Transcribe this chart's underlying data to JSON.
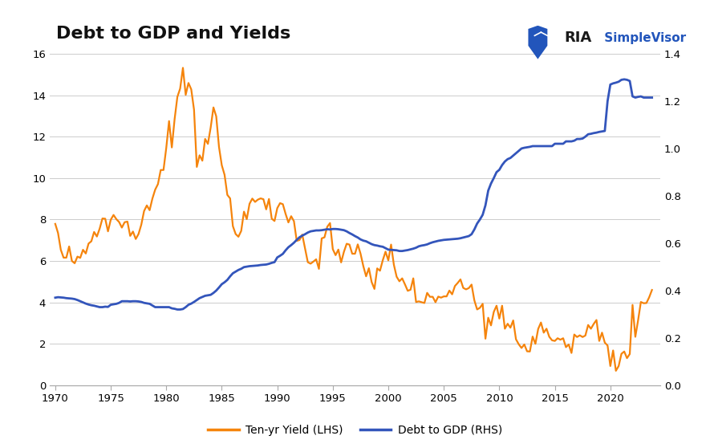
{
  "title": "Debt to GDP and Yields",
  "yield_color": "#F5840C",
  "debt_color": "#3355BB",
  "background_color": "#FFFFFF",
  "lhs_ylim": [
    0,
    16
  ],
  "rhs_ylim": [
    0,
    1.4
  ],
  "lhs_yticks": [
    0,
    2,
    4,
    6,
    8,
    10,
    12,
    14,
    16
  ],
  "rhs_yticks": [
    0,
    0.2,
    0.4,
    0.6,
    0.8,
    1.0,
    1.2,
    1.4
  ],
  "xticks": [
    1970,
    1975,
    1980,
    1985,
    1990,
    1995,
    2000,
    2005,
    2010,
    2015,
    2020
  ],
  "legend_yield": "Ten-yr Yield (LHS)",
  "legend_debt": "Debt to GDP (RHS)",
  "years_yield": [
    1970.0,
    1970.25,
    1970.5,
    1970.75,
    1971.0,
    1971.25,
    1971.5,
    1971.75,
    1972.0,
    1972.25,
    1972.5,
    1972.75,
    1973.0,
    1973.25,
    1973.5,
    1973.75,
    1974.0,
    1974.25,
    1974.5,
    1974.75,
    1975.0,
    1975.25,
    1975.5,
    1975.75,
    1976.0,
    1976.25,
    1976.5,
    1976.75,
    1977.0,
    1977.25,
    1977.5,
    1977.75,
    1978.0,
    1978.25,
    1978.5,
    1978.75,
    1979.0,
    1979.25,
    1979.5,
    1979.75,
    1980.0,
    1980.25,
    1980.5,
    1980.75,
    1981.0,
    1981.25,
    1981.5,
    1981.75,
    1982.0,
    1982.25,
    1982.5,
    1982.75,
    1983.0,
    1983.25,
    1983.5,
    1983.75,
    1984.0,
    1984.25,
    1984.5,
    1984.75,
    1985.0,
    1985.25,
    1985.5,
    1985.75,
    1986.0,
    1986.25,
    1986.5,
    1986.75,
    1987.0,
    1987.25,
    1987.5,
    1987.75,
    1988.0,
    1988.25,
    1988.5,
    1988.75,
    1989.0,
    1989.25,
    1989.5,
    1989.75,
    1990.0,
    1990.25,
    1990.5,
    1990.75,
    1991.0,
    1991.25,
    1991.5,
    1991.75,
    1992.0,
    1992.25,
    1992.5,
    1992.75,
    1993.0,
    1993.25,
    1993.5,
    1993.75,
    1994.0,
    1994.25,
    1994.5,
    1994.75,
    1995.0,
    1995.25,
    1995.5,
    1995.75,
    1996.0,
    1996.25,
    1996.5,
    1996.75,
    1997.0,
    1997.25,
    1997.5,
    1997.75,
    1998.0,
    1998.25,
    1998.5,
    1998.75,
    1999.0,
    1999.25,
    1999.5,
    1999.75,
    2000.0,
    2000.25,
    2000.5,
    2000.75,
    2001.0,
    2001.25,
    2001.5,
    2001.75,
    2002.0,
    2002.25,
    2002.5,
    2002.75,
    2003.0,
    2003.25,
    2003.5,
    2003.75,
    2004.0,
    2004.25,
    2004.5,
    2004.75,
    2005.0,
    2005.25,
    2005.5,
    2005.75,
    2006.0,
    2006.25,
    2006.5,
    2006.75,
    2007.0,
    2007.25,
    2007.5,
    2007.75,
    2008.0,
    2008.25,
    2008.5,
    2008.75,
    2009.0,
    2009.25,
    2009.5,
    2009.75,
    2010.0,
    2010.25,
    2010.5,
    2010.75,
    2011.0,
    2011.25,
    2011.5,
    2011.75,
    2012.0,
    2012.25,
    2012.5,
    2012.75,
    2013.0,
    2013.25,
    2013.5,
    2013.75,
    2014.0,
    2014.25,
    2014.5,
    2014.75,
    2015.0,
    2015.25,
    2015.5,
    2015.75,
    2016.0,
    2016.25,
    2016.5,
    2016.75,
    2017.0,
    2017.25,
    2017.5,
    2017.75,
    2018.0,
    2018.25,
    2018.5,
    2018.75,
    2019.0,
    2019.25,
    2019.5,
    2019.75,
    2020.0,
    2020.25,
    2020.5,
    2020.75,
    2021.0,
    2021.25,
    2021.5,
    2021.75,
    2022.0,
    2022.25,
    2022.5,
    2022.75,
    2023.0,
    2023.25,
    2023.5,
    2023.75
  ],
  "values_yield": [
    7.79,
    7.35,
    6.54,
    6.16,
    6.16,
    6.7,
    6.0,
    5.89,
    6.21,
    6.15,
    6.54,
    6.36,
    6.84,
    6.95,
    7.4,
    7.18,
    7.56,
    8.05,
    8.04,
    7.43,
    7.99,
    8.22,
    8.02,
    7.88,
    7.61,
    7.87,
    7.9,
    7.21,
    7.42,
    7.06,
    7.3,
    7.75,
    8.41,
    8.68,
    8.45,
    9.01,
    9.44,
    9.71,
    10.39,
    10.39,
    11.46,
    12.75,
    11.48,
    12.84,
    13.92,
    14.32,
    15.32,
    14.02,
    14.59,
    14.28,
    13.3,
    10.54,
    11.1,
    10.84,
    11.89,
    11.65,
    12.44,
    13.41,
    12.98,
    11.5,
    10.62,
    10.16,
    9.19,
    9.02,
    7.68,
    7.3,
    7.17,
    7.45,
    8.38,
    8.02,
    8.76,
    9.01,
    8.85,
    8.96,
    9.02,
    8.98,
    8.49,
    8.99,
    8.04,
    7.93,
    8.55,
    8.79,
    8.74,
    8.27,
    7.86,
    8.16,
    7.92,
    6.97,
    7.01,
    7.27,
    6.6,
    5.94,
    5.87,
    5.97,
    6.08,
    5.62,
    7.09,
    7.14,
    7.65,
    7.83,
    6.57,
    6.28,
    6.55,
    5.93,
    6.44,
    6.83,
    6.79,
    6.35,
    6.35,
    6.8,
    6.35,
    5.75,
    5.26,
    5.65,
    4.98,
    4.65,
    5.64,
    5.53,
    6.03,
    6.45,
    6.03,
    6.79,
    5.82,
    5.24,
    5.02,
    5.16,
    4.87,
    4.56,
    4.61,
    5.16,
    4.02,
    4.05,
    4.01,
    3.97,
    4.46,
    4.27,
    4.27,
    4.01,
    4.28,
    4.23,
    4.29,
    4.29,
    4.57,
    4.39,
    4.79,
    4.94,
    5.11,
    4.7,
    4.63,
    4.69,
    4.86,
    4.1,
    3.66,
    3.74,
    3.93,
    2.25,
    3.26,
    2.89,
    3.54,
    3.84,
    3.22,
    3.84,
    2.73,
    2.97,
    2.78,
    3.13,
    2.22,
    1.98,
    1.8,
    1.97,
    1.64,
    1.63,
    2.35,
    2.0,
    2.72,
    3.03,
    2.54,
    2.73,
    2.34,
    2.17,
    2.14,
    2.27,
    2.2,
    2.27,
    1.84,
    1.97,
    1.56,
    2.45,
    2.33,
    2.41,
    2.33,
    2.4,
    2.91,
    2.73,
    2.96,
    3.15,
    2.14,
    2.54,
    2.06,
    1.92,
    0.93,
    1.68,
    0.7,
    0.93,
    1.52,
    1.63,
    1.31,
    1.51,
    3.88,
    2.34,
    3.14,
    4.02,
    3.96,
    3.97,
    4.25,
    4.6
  ],
  "years_debt": [
    1970.0,
    1970.25,
    1970.5,
    1970.75,
    1971.0,
    1971.25,
    1971.5,
    1971.75,
    1972.0,
    1972.25,
    1972.5,
    1972.75,
    1973.0,
    1973.25,
    1973.5,
    1973.75,
    1974.0,
    1974.25,
    1974.5,
    1974.75,
    1975.0,
    1975.25,
    1975.5,
    1975.75,
    1976.0,
    1976.25,
    1976.5,
    1976.75,
    1977.0,
    1977.25,
    1977.5,
    1977.75,
    1978.0,
    1978.25,
    1978.5,
    1978.75,
    1979.0,
    1979.25,
    1979.5,
    1979.75,
    1980.0,
    1980.25,
    1980.5,
    1980.75,
    1981.0,
    1981.25,
    1981.5,
    1981.75,
    1982.0,
    1982.25,
    1982.5,
    1982.75,
    1983.0,
    1983.25,
    1983.5,
    1983.75,
    1984.0,
    1984.25,
    1984.5,
    1984.75,
    1985.0,
    1985.25,
    1985.5,
    1985.75,
    1986.0,
    1986.25,
    1986.5,
    1986.75,
    1987.0,
    1987.25,
    1987.5,
    1987.75,
    1988.0,
    1988.25,
    1988.5,
    1988.75,
    1989.0,
    1989.25,
    1989.5,
    1989.75,
    1990.0,
    1990.25,
    1990.5,
    1990.75,
    1991.0,
    1991.25,
    1991.5,
    1991.75,
    1992.0,
    1992.25,
    1992.5,
    1992.75,
    1993.0,
    1993.25,
    1993.5,
    1993.75,
    1994.0,
    1994.25,
    1994.5,
    1994.75,
    1995.0,
    1995.25,
    1995.5,
    1995.75,
    1996.0,
    1996.25,
    1996.5,
    1996.75,
    1997.0,
    1997.25,
    1997.5,
    1997.75,
    1998.0,
    1998.25,
    1998.5,
    1998.75,
    1999.0,
    1999.25,
    1999.5,
    1999.75,
    2000.0,
    2000.25,
    2000.5,
    2000.75,
    2001.0,
    2001.25,
    2001.5,
    2001.75,
    2002.0,
    2002.25,
    2002.5,
    2002.75,
    2003.0,
    2003.25,
    2003.5,
    2003.75,
    2004.0,
    2004.25,
    2004.5,
    2004.75,
    2005.0,
    2005.25,
    2005.5,
    2005.75,
    2006.0,
    2006.25,
    2006.5,
    2006.75,
    2007.0,
    2007.25,
    2007.5,
    2007.75,
    2008.0,
    2008.25,
    2008.5,
    2008.75,
    2009.0,
    2009.25,
    2009.5,
    2009.75,
    2010.0,
    2010.25,
    2010.5,
    2010.75,
    2011.0,
    2011.25,
    2011.5,
    2011.75,
    2012.0,
    2012.25,
    2012.5,
    2012.75,
    2013.0,
    2013.25,
    2013.5,
    2013.75,
    2014.0,
    2014.25,
    2014.5,
    2014.75,
    2015.0,
    2015.25,
    2015.5,
    2015.75,
    2016.0,
    2016.25,
    2016.5,
    2016.75,
    2017.0,
    2017.25,
    2017.5,
    2017.75,
    2018.0,
    2018.25,
    2018.5,
    2018.75,
    2019.0,
    2019.25,
    2019.5,
    2019.75,
    2020.0,
    2020.25,
    2020.5,
    2020.75,
    2021.0,
    2021.25,
    2021.5,
    2021.75,
    2022.0,
    2022.25,
    2022.5,
    2022.75,
    2023.0,
    2023.25,
    2023.5,
    2023.75
  ],
  "values_debt": [
    0.37,
    0.372,
    0.371,
    0.37,
    0.368,
    0.367,
    0.366,
    0.364,
    0.36,
    0.355,
    0.35,
    0.345,
    0.341,
    0.338,
    0.336,
    0.333,
    0.33,
    0.33,
    0.332,
    0.331,
    0.34,
    0.342,
    0.344,
    0.348,
    0.355,
    0.355,
    0.355,
    0.354,
    0.355,
    0.355,
    0.354,
    0.352,
    0.348,
    0.346,
    0.344,
    0.337,
    0.33,
    0.33,
    0.33,
    0.33,
    0.33,
    0.33,
    0.325,
    0.323,
    0.32,
    0.32,
    0.322,
    0.33,
    0.34,
    0.345,
    0.352,
    0.36,
    0.368,
    0.373,
    0.378,
    0.38,
    0.382,
    0.39,
    0.4,
    0.413,
    0.427,
    0.435,
    0.445,
    0.46,
    0.473,
    0.48,
    0.487,
    0.492,
    0.499,
    0.501,
    0.503,
    0.504,
    0.505,
    0.506,
    0.508,
    0.509,
    0.51,
    0.513,
    0.517,
    0.52,
    0.54,
    0.547,
    0.555,
    0.57,
    0.583,
    0.592,
    0.602,
    0.614,
    0.625,
    0.632,
    0.638,
    0.645,
    0.65,
    0.652,
    0.654,
    0.654,
    0.655,
    0.657,
    0.659,
    0.658,
    0.66,
    0.66,
    0.659,
    0.657,
    0.655,
    0.65,
    0.643,
    0.637,
    0.63,
    0.624,
    0.616,
    0.611,
    0.608,
    0.602,
    0.596,
    0.592,
    0.59,
    0.587,
    0.585,
    0.579,
    0.573,
    0.572,
    0.571,
    0.57,
    0.567,
    0.567,
    0.569,
    0.571,
    0.574,
    0.577,
    0.581,
    0.587,
    0.59,
    0.592,
    0.595,
    0.6,
    0.604,
    0.607,
    0.61,
    0.612,
    0.614,
    0.615,
    0.616,
    0.617,
    0.618,
    0.619,
    0.621,
    0.624,
    0.627,
    0.63,
    0.638,
    0.658,
    0.683,
    0.7,
    0.72,
    0.76,
    0.822,
    0.852,
    0.875,
    0.9,
    0.91,
    0.93,
    0.945,
    0.955,
    0.96,
    0.97,
    0.98,
    0.99,
    1.0,
    1.003,
    1.005,
    1.007,
    1.01,
    1.01,
    1.01,
    1.01,
    1.01,
    1.01,
    1.01,
    1.01,
    1.02,
    1.02,
    1.02,
    1.02,
    1.03,
    1.03,
    1.03,
    1.033,
    1.04,
    1.04,
    1.042,
    1.05,
    1.06,
    1.062,
    1.065,
    1.067,
    1.07,
    1.072,
    1.074,
    1.2,
    1.27,
    1.275,
    1.278,
    1.282,
    1.29,
    1.292,
    1.29,
    1.285,
    1.22,
    1.215,
    1.218,
    1.22,
    1.215,
    1.215,
    1.215,
    1.215
  ]
}
